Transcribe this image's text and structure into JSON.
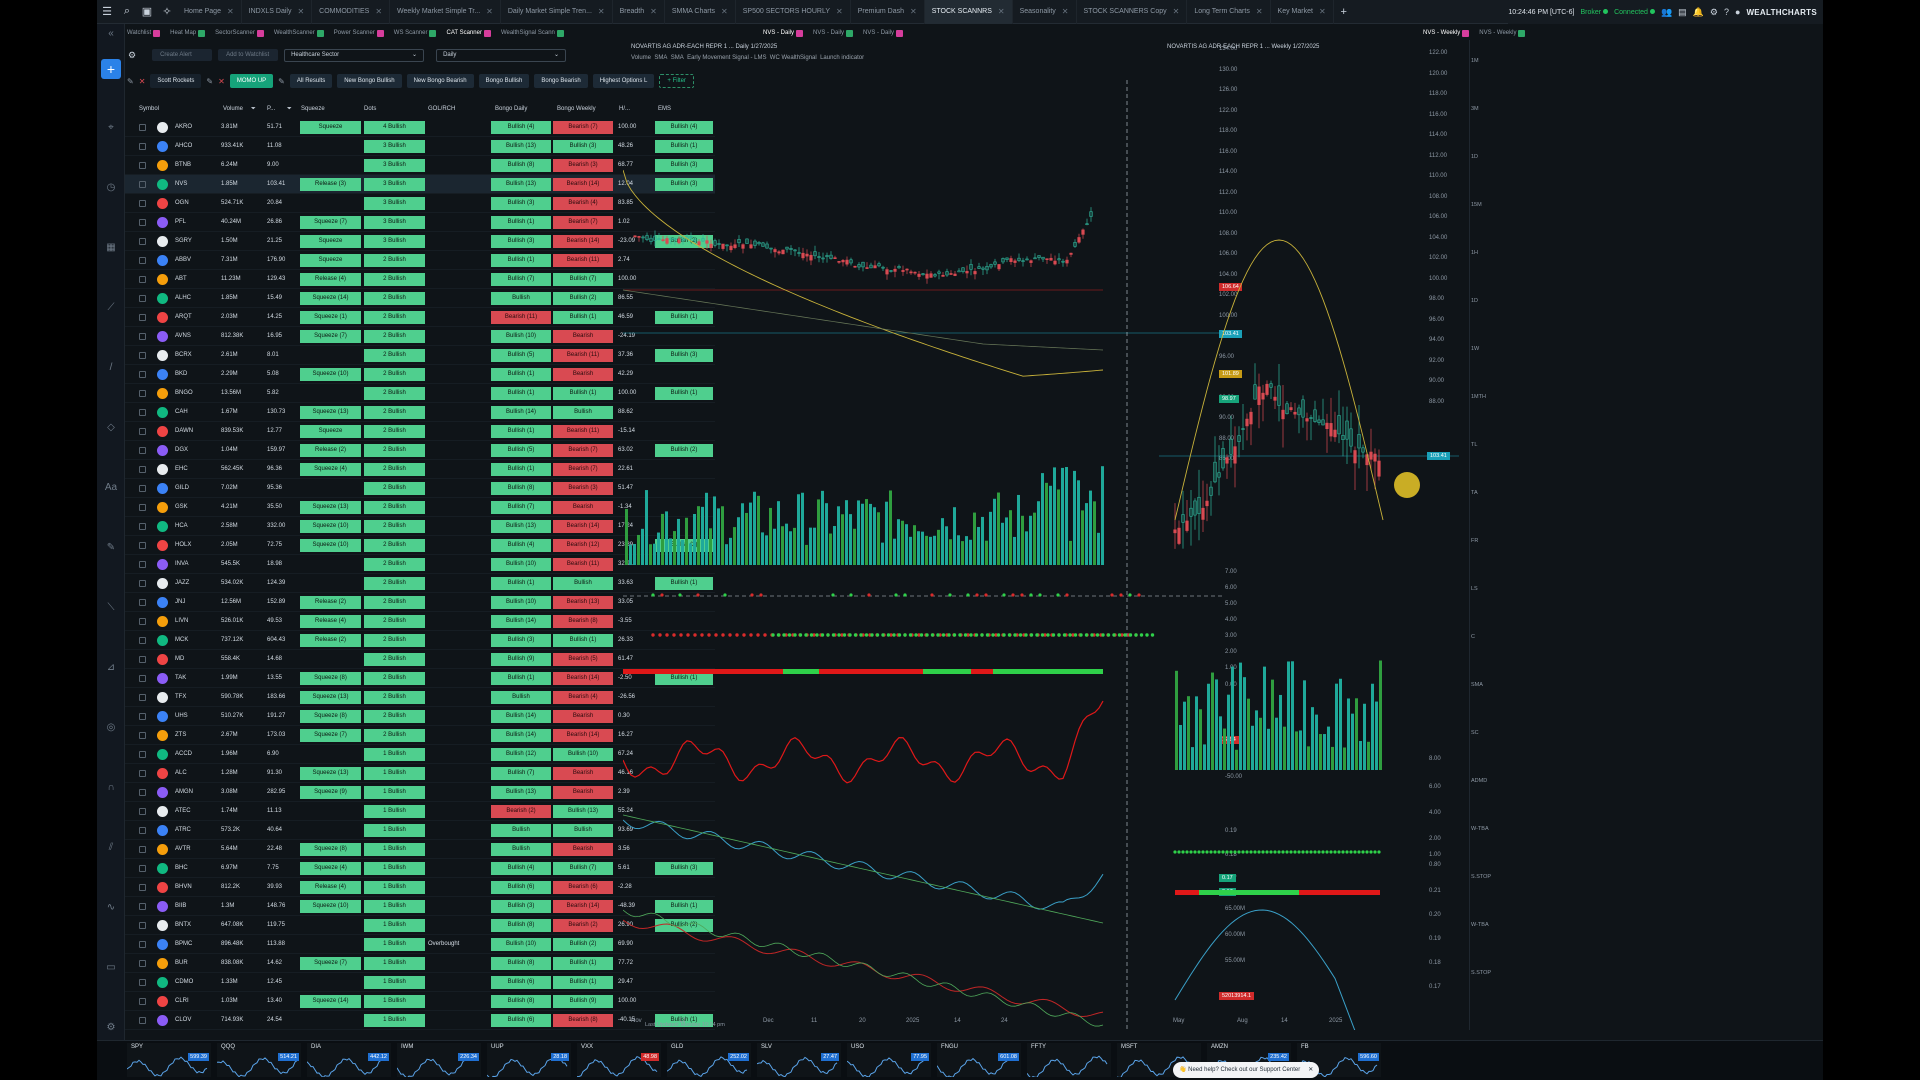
{
  "tabs": [
    "Home Page",
    "INDXLS Daily",
    "COMMODITIES",
    "Weekly Market Simple Tr...",
    "Daily Market Simple Tren...",
    "Breadth",
    "SMMA Charts",
    "SP500 SECTORS HOURLY",
    "Premium Dash",
    "STOCK SCANNRS",
    "Seasonality",
    "STOCK SCANNERS Copy",
    "Long Term Charts",
    "Key Market"
  ],
  "active_tab": "STOCK SCANNRS",
  "topbar": {
    "clock": "10:24:46 PM [UTC-6]",
    "status1": "Broker",
    "status2": "Connected",
    "brand": "WEALTHCHARTS"
  },
  "panel_tabs": {
    "scanner": [
      "Watchlist",
      "Heat Map",
      "SectorScanner",
      "WealthScanner",
      "Power Scanner",
      "WS Scanner",
      "CAT Scanner",
      "WealthSignal Scann"
    ],
    "chart1": [
      "NVS - Daily",
      "NVS - Daily",
      "NVS - Daily"
    ],
    "chart2": [
      "NVS - Weekly",
      "NVS - Weekly"
    ]
  },
  "scanner": {
    "create_alert": "Create Alert",
    "add_watchlist": "Add to Watchlist",
    "sector": "Healthcare Sector",
    "interval": "Daily",
    "chips": [
      "Scott Rockets",
      "MOMO UP",
      "All Results",
      "New Bongo Bullish",
      "New Bongo Bearish",
      "Bongo Bullish",
      "Bongo Bearish",
      "Highest Options L",
      "+ Filter"
    ],
    "columns": [
      "Symbol",
      "Volume",
      "P...",
      "Squeeze",
      "Dots",
      "GOL/RCH",
      "Bongo Daily",
      "Bongo Weekly",
      "H/...",
      "EMS"
    ],
    "rows": [
      [
        "AKRO",
        "3.81M",
        "51.71",
        "Squeeze",
        "4 Bullish",
        "",
        "Bullish (4)",
        "Bearish (7)",
        "100.00",
        "Bullish (4)"
      ],
      [
        "AHCO",
        "933.41K",
        "11.08",
        "",
        "3 Bullish",
        "",
        "Bullish (13)",
        "Bullish (3)",
        "48.26",
        "Bullish (1)"
      ],
      [
        "BTNB",
        "6.24M",
        "9.00",
        "",
        "3 Bullish",
        "",
        "Bullish (8)",
        "Bearish (3)",
        "68.77",
        "Bullish (3)"
      ],
      [
        "NVS",
        "1.85M",
        "103.41",
        "Release (3)",
        "3 Bullish",
        "",
        "Bullish (13)",
        "Bearish (14)",
        "12.04",
        "Bullish (3)"
      ],
      [
        "OGN",
        "524.71K",
        "20.84",
        "",
        "3 Bullish",
        "",
        "Bullish (3)",
        "Bearish (4)",
        "83.85",
        ""
      ],
      [
        "PFL",
        "40.24M",
        "26.86",
        "Squeeze (7)",
        "3 Bullish",
        "",
        "Bullish (1)",
        "Bearish (7)",
        "1.02",
        ""
      ],
      [
        "SGRY",
        "1.50M",
        "21.25",
        "Squeeze",
        "3 Bullish",
        "",
        "Bullish (3)",
        "Bearish (14)",
        "-23.09",
        "Bullish (2)"
      ],
      [
        "ABBV",
        "7.31M",
        "176.90",
        "Squeeze",
        "2 Bullish",
        "",
        "Bullish (1)",
        "Bearish (11)",
        "2.74",
        ""
      ],
      [
        "ABT",
        "11.23M",
        "129.43",
        "Release (4)",
        "2 Bullish",
        "",
        "Bullish (7)",
        "Bullish (7)",
        "100.00",
        ""
      ],
      [
        "ALHC",
        "1.85M",
        "15.49",
        "Squeeze (14)",
        "2 Bullish",
        "",
        "Bullish",
        "Bullish (2)",
        "86.55",
        ""
      ],
      [
        "ARQT",
        "2.03M",
        "14.25",
        "Squeeze (1)",
        "2 Bullish",
        "",
        "Bearish (11)",
        "Bullish (1)",
        "46.59",
        "Bullish (1)"
      ],
      [
        "AVNS",
        "812.38K",
        "16.95",
        "Squeeze (7)",
        "2 Bullish",
        "",
        "Bullish (10)",
        "Bearish",
        "-24.19",
        ""
      ],
      [
        "BCRX",
        "2.61M",
        "8.01",
        "",
        "2 Bullish",
        "",
        "Bullish (5)",
        "Bearish (11)",
        "37.36",
        "Bullish (3)"
      ],
      [
        "BKD",
        "2.29M",
        "5.08",
        "Squeeze (10)",
        "2 Bullish",
        "",
        "Bullish (1)",
        "Bearish",
        "42.29",
        ""
      ],
      [
        "BNGO",
        "13.56M",
        "5.82",
        "",
        "2 Bullish",
        "",
        "Bullish (1)",
        "Bullish (1)",
        "100.00",
        "Bullish (1)"
      ],
      [
        "CAH",
        "1.67M",
        "130.73",
        "Squeeze (13)",
        "2 Bullish",
        "",
        "Bullish (14)",
        "Bullish",
        "88.62",
        ""
      ],
      [
        "DAWN",
        "839.53K",
        "12.77",
        "Squeeze",
        "2 Bullish",
        "",
        "Bullish (1)",
        "Bearish (11)",
        "-15.14",
        ""
      ],
      [
        "DGX",
        "1.04M",
        "159.97",
        "Release (2)",
        "2 Bullish",
        "",
        "Bullish (5)",
        "Bearish (7)",
        "63.02",
        "Bullish (2)"
      ],
      [
        "EHC",
        "562.45K",
        "96.36",
        "Squeeze (4)",
        "2 Bullish",
        "",
        "Bullish (1)",
        "Bearish (7)",
        "22.61",
        ""
      ],
      [
        "GILD",
        "7.02M",
        "95.36",
        "",
        "2 Bullish",
        "",
        "Bullish (8)",
        "Bearish (3)",
        "51.47",
        ""
      ],
      [
        "GSK",
        "4.21M",
        "35.50",
        "Squeeze (13)",
        "2 Bullish",
        "",
        "Bullish (7)",
        "Bearish",
        "-1.34",
        ""
      ],
      [
        "HCA",
        "2.58M",
        "332.00",
        "Squeeze (10)",
        "2 Bullish",
        "",
        "Bullish (13)",
        "Bearish (14)",
        "17.24",
        ""
      ],
      [
        "HOLX",
        "2.05M",
        "72.75",
        "Squeeze (10)",
        "2 Bullish",
        "",
        "Bullish (4)",
        "Bearish (12)",
        "23.89",
        "Bullish (2)"
      ],
      [
        "INVA",
        "545.5K",
        "18.98",
        "",
        "2 Bullish",
        "",
        "Bullish (10)",
        "Bearish (11)",
        "32.91",
        ""
      ],
      [
        "JAZZ",
        "534.02K",
        "124.39",
        "",
        "2 Bullish",
        "",
        "Bullish (1)",
        "Bullish",
        "33.63",
        "Bullish (1)"
      ],
      [
        "JNJ",
        "12.56M",
        "152.89",
        "Release (2)",
        "2 Bullish",
        "",
        "Bullish (10)",
        "Bearish (13)",
        "33.05",
        ""
      ],
      [
        "LIVN",
        "526.01K",
        "49.53",
        "Release (4)",
        "2 Bullish",
        "",
        "Bullish (14)",
        "Bearish (8)",
        "-3.55",
        ""
      ],
      [
        "MCK",
        "737.12K",
        "604.43",
        "Release (2)",
        "2 Bullish",
        "",
        "Bullish (3)",
        "Bullish (1)",
        "26.33",
        ""
      ],
      [
        "MD",
        "558.4K",
        "14.68",
        "",
        "2 Bullish",
        "",
        "Bullish (9)",
        "Bearish (5)",
        "61.47",
        ""
      ],
      [
        "TAK",
        "1.99M",
        "13.55",
        "Squeeze (8)",
        "2 Bullish",
        "",
        "Bullish (1)",
        "Bearish (14)",
        "-2.50",
        "Bullish (1)"
      ],
      [
        "TFX",
        "590.78K",
        "183.66",
        "Squeeze (13)",
        "2 Bullish",
        "",
        "Bullish",
        "Bearish (4)",
        "-26.56",
        ""
      ],
      [
        "UHS",
        "510.27K",
        "191.27",
        "Squeeze (8)",
        "2 Bullish",
        "",
        "Bullish (14)",
        "Bearish",
        "0.30",
        ""
      ],
      [
        "ZTS",
        "2.67M",
        "173.03",
        "Squeeze (7)",
        "2 Bullish",
        "",
        "Bullish (14)",
        "Bearish (14)",
        "16.27",
        ""
      ],
      [
        "ACCD",
        "1.96M",
        "6.90",
        "",
        "1 Bullish",
        "",
        "Bullish (12)",
        "Bullish (10)",
        "67.24",
        ""
      ],
      [
        "ALC",
        "1.28M",
        "91.30",
        "Squeeze (13)",
        "1 Bullish",
        "",
        "Bullish (7)",
        "Bearish",
        "46.16",
        ""
      ],
      [
        "AMGN",
        "3.08M",
        "282.95",
        "Squeeze (9)",
        "1 Bullish",
        "",
        "Bullish (13)",
        "Bearish",
        "2.39",
        ""
      ],
      [
        "ATEC",
        "1.74M",
        "11.13",
        "",
        "1 Bullish",
        "",
        "Bearish (2)",
        "Bullish (13)",
        "55.24",
        ""
      ],
      [
        "ATRC",
        "573.2K",
        "40.64",
        "",
        "1 Bullish",
        "",
        "Bullish",
        "Bullish",
        "93.69",
        ""
      ],
      [
        "AVTR",
        "5.64M",
        "22.48",
        "Squeeze (8)",
        "1 Bullish",
        "",
        "Bullish",
        "Bearish",
        "3.56",
        ""
      ],
      [
        "BHC",
        "6.97M",
        "7.75",
        "Squeeze (4)",
        "1 Bullish",
        "",
        "Bullish (4)",
        "Bullish (7)",
        "5.61",
        "Bullish (3)"
      ],
      [
        "BHVN",
        "812.2K",
        "39.93",
        "Release (4)",
        "1 Bullish",
        "",
        "Bullish (6)",
        "Bearish (6)",
        "-2.28",
        ""
      ],
      [
        "BIIB",
        "1.3M",
        "148.76",
        "Squeeze (10)",
        "1 Bullish",
        "",
        "Bullish (3)",
        "Bearish (14)",
        "-48.39",
        "Bullish (1)"
      ],
      [
        "BNTX",
        "647.08K",
        "119.75",
        "",
        "1 Bullish",
        "",
        "Bullish (8)",
        "Bearish (2)",
        "26.90",
        "Bullish (2)"
      ],
      [
        "BPMC",
        "896.48K",
        "113.88",
        "",
        "1 Bullish",
        "Overbought",
        "Bullish (10)",
        "Bullish (2)",
        "69.90",
        ""
      ],
      [
        "BUR",
        "838.08K",
        "14.62",
        "Squeeze (7)",
        "1 Bullish",
        "",
        "Bullish (8)",
        "Bullish (1)",
        "77.72",
        ""
      ],
      [
        "CDMO",
        "1.33M",
        "12.45",
        "",
        "1 Bullish",
        "",
        "Bullish (6)",
        "Bullish (1)",
        "29.47",
        ""
      ],
      [
        "CLRI",
        "1.03M",
        "13.40",
        "Squeeze (14)",
        "1 Bullish",
        "",
        "Bullish (8)",
        "Bullish (9)",
        "100.00",
        ""
      ],
      [
        "CLOV",
        "714.93K",
        "24.54",
        "",
        "1 Bullish",
        "",
        "Bullish (6)",
        "Bearish (8)",
        "-40.15",
        "Bullish (1)"
      ]
    ],
    "last_updated": "Last Updated: Monday 10:24 pm"
  },
  "chart1": {
    "symbol_label": "NOVARTIS AG ADR-EACH REPR 1 ... Daily 1/27/2025",
    "indicators": [
      "Volume",
      "SMA",
      "SMA",
      "Early Movement Signal - LMS",
      "WC WealthSignal",
      "Launch indicator"
    ],
    "xlabels": [
      "Nov",
      "12",
      "Dec",
      "11",
      "20",
      "2025",
      "14",
      "24"
    ],
    "price_axis": [
      "134.00",
      "130.00",
      "126.00",
      "122.00",
      "118.00",
      "116.00",
      "114.00",
      "112.00",
      "110.00",
      "108.00",
      "106.00",
      "104.00",
      "102.00",
      "100.00",
      "98.00",
      "96.00",
      "94.00",
      "92.00",
      "90.00",
      "88.00",
      "86.00"
    ],
    "lower_axis": [
      "7.00",
      "6.00",
      "5.00",
      "4.00",
      "3.00",
      "2.00",
      "1.00",
      "0.00",
      "-50.00",
      "0.19",
      "0.18",
      "0.17",
      "65.00M",
      "60.00M",
      "55.00M"
    ],
    "tags": {
      "t1": "106.64",
      "t2": "103.41",
      "t3": "101.89",
      "t4": "98.97",
      "t5": "12.94",
      "t6": "0.17",
      "t7": "0.17",
      "t8": "52013914.1"
    }
  },
  "chart2": {
    "symbol_label": "NOVARTIS AG ADR-EACH REPR 1 ... Weekly 1/27/2025",
    "xlabels": [
      "May",
      "Aug",
      "14",
      "2025"
    ],
    "price_axis": [
      "122.00",
      "120.00",
      "118.00",
      "116.00",
      "114.00",
      "112.00",
      "110.00",
      "108.00",
      "106.00",
      "104.00",
      "102.00",
      "100.00",
      "98.00",
      "96.00",
      "94.00",
      "92.00",
      "90.00",
      "88.00"
    ],
    "lower_axis": [
      "8.00",
      "6.00",
      "4.00",
      "2.00",
      "1.00",
      "0.80",
      "0.21",
      "0.20",
      "0.19",
      "0.18",
      "0.17"
    ],
    "tag": "103.41"
  },
  "right_toolbar": [
    "1M",
    "3M",
    "1D",
    "15M",
    "1H",
    "1D",
    "1W",
    "1MTH",
    "TL",
    "TA",
    "FR",
    "LS",
    "C",
    "SMA",
    "SC",
    "ADMD",
    "W-TBA",
    "S.STOP",
    "W-TBA",
    "S.STOP"
  ],
  "tickers": [
    {
      "sym": "SPY",
      "price": "599.39",
      "color": "#1f6fd1"
    },
    {
      "sym": "QQQ",
      "price": "514.21",
      "color": "#1f6fd1"
    },
    {
      "sym": "DIA",
      "price": "442.12",
      "color": "#1f6fd1"
    },
    {
      "sym": "IWM",
      "price": "226.34",
      "color": "#1f6fd1"
    },
    {
      "sym": "UUP",
      "price": "28.18",
      "color": "#1f6fd1"
    },
    {
      "sym": "VXX",
      "price": "48.98",
      "color": "#d02b2b"
    },
    {
      "sym": "GLD",
      "price": "252.02",
      "color": "#1f6fd1"
    },
    {
      "sym": "SLV",
      "price": "27.47",
      "color": "#1f6fd1"
    },
    {
      "sym": "USO",
      "price": "77.95",
      "color": "#1f6fd1"
    },
    {
      "sym": "FNGU",
      "price": "601.08",
      "color": "#1f6fd1"
    },
    {
      "sym": "FFTY",
      "price": "",
      "color": "#1f6fd1"
    },
    {
      "sym": "MSFT",
      "price": "",
      "color": "#1f6fd1"
    },
    {
      "sym": "AMZN",
      "price": "235.42",
      "color": "#1f6fd1"
    },
    {
      "sym": "FB",
      "price": "596.60",
      "color": "#1f6fd1"
    }
  ],
  "support": "Need help? Check out our Support Center"
}
